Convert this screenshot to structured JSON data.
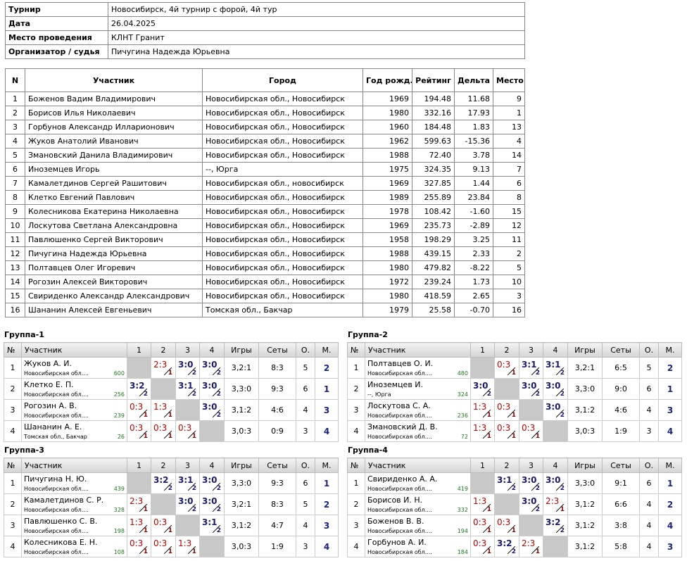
{
  "info": [
    [
      "Турнир",
      "Новосибирск, 4й турнир с форой, 4й тур"
    ],
    [
      "Дата",
      "26.04.2025"
    ],
    [
      "Место проведения",
      "КЛНТ Гранит"
    ],
    [
      "Организатор / судья",
      "Пичугина Надежда Юрьевна"
    ]
  ],
  "participants": {
    "columns": [
      "N",
      "Участник",
      "Город",
      "Год рожд.",
      "Рейтинг",
      "Дельта",
      "Место"
    ],
    "rows": [
      [
        "1",
        "Боженов Вадим Владимирович",
        "Новосибирская обл., Новосибирск",
        "1969",
        "194.48",
        "11.68",
        "9"
      ],
      [
        "2",
        "Борисов Илья Николаевич",
        "Новосибирская обл., Новосибирск",
        "1980",
        "332.16",
        "17.93",
        "1"
      ],
      [
        "3",
        "Горбунов Александр Илларионович",
        "Новосибирская обл., Новосибирск",
        "1960",
        "184.48",
        "1.83",
        "13"
      ],
      [
        "4",
        "Жуков Анатолий Иванович",
        "Новосибирская обл., Новосибирск",
        "1962",
        "599.63",
        "-15.36",
        "4"
      ],
      [
        "5",
        "Змановский Данила Владимирович",
        "Новосибирская обл., Новосибирск",
        "1988",
        "72.40",
        "3.78",
        "14"
      ],
      [
        "6",
        "Иноземцев Игорь",
        "--, Юрга",
        "1975",
        "324.35",
        "9.13",
        "7"
      ],
      [
        "7",
        "Камалетдинов Сергей Рашитович",
        "Новосибирская обл., новосибирск",
        "1969",
        "327.85",
        "1.44",
        "6"
      ],
      [
        "8",
        "Клетко Евгений Павлович",
        "Новосибирская обл., Новосибирск",
        "1989",
        "255.89",
        "23.84",
        "8"
      ],
      [
        "9",
        "Колесникова Екатерина Николаевна",
        "Новосибирская обл., Новосибирск",
        "1978",
        "108.42",
        "-1.60",
        "15"
      ],
      [
        "10",
        "Лоскутова Светлана Александровна",
        "Новосибирская обл., Новосибирск",
        "1969",
        "235.73",
        "-2.89",
        "12"
      ],
      [
        "11",
        "Павлюшенко Сергей Викторович",
        "Новосибирская обл., Новосибирск",
        "1958",
        "198.29",
        "3.25",
        "11"
      ],
      [
        "12",
        "Пичугина Надежда Юрьевна",
        "Новосибирская обл., Новосибирск",
        "1988",
        "439.15",
        "2.33",
        "2"
      ],
      [
        "13",
        "Полтавцев Олег Игоревич",
        "Новосибирская обл., Новосибирск",
        "1980",
        "479.82",
        "-8.22",
        "5"
      ],
      [
        "14",
        "Рогозин Алексей Викторович",
        "Новосибирская обл., Новосибирск",
        "1972",
        "239.24",
        "1.73",
        "10"
      ],
      [
        "15",
        "Свириденко Александр Александрович",
        "Новосибирская обл., Новосибирск",
        "1980",
        "418.59",
        "2.65",
        "3"
      ],
      [
        "16",
        "Шананин Алексей Евгеньевич",
        "Томская обл., Бакчар",
        "1979",
        "25.58",
        "-0.70",
        "16"
      ]
    ]
  },
  "group_columns": [
    "№",
    "Участник",
    "1",
    "2",
    "3",
    "4",
    "Игры",
    "Сеты",
    "О.",
    "М."
  ],
  "groups": [
    {
      "title": "Группа-1",
      "rows": [
        {
          "n": "1",
          "name": "Жуков А. И.",
          "city": "Новосибирская обл....",
          "rating": "600",
          "cells": [
            null,
            {
              "score": "2:3",
              "points": "1"
            },
            {
              "score": "3:0",
              "points": "2"
            },
            {
              "score": "3:0",
              "points": "2"
            }
          ],
          "games": "3,2:1",
          "sets": "8:3",
          "points": "5",
          "place": "2"
        },
        {
          "n": "2",
          "name": "Клетко Е. П.",
          "city": "Новосибирская обл....",
          "rating": "256",
          "cells": [
            {
              "score": "3:2",
              "points": "2"
            },
            null,
            {
              "score": "3:1",
              "points": "2"
            },
            {
              "score": "3:0",
              "points": "2"
            }
          ],
          "games": "3,3:0",
          "sets": "9:3",
          "points": "6",
          "place": "1"
        },
        {
          "n": "3",
          "name": "Рогозин А. В.",
          "city": "Новосибирская обл....",
          "rating": "239",
          "cells": [
            {
              "score": "0:3",
              "points": "1"
            },
            {
              "score": "1:3",
              "points": "1"
            },
            null,
            {
              "score": "3:0",
              "points": "2"
            }
          ],
          "games": "3,1:2",
          "sets": "4:6",
          "points": "4",
          "place": "3"
        },
        {
          "n": "4",
          "name": "Шананин А. Е.",
          "city": "Томская обл., Бакчар",
          "rating": "26",
          "cells": [
            {
              "score": "0:3",
              "points": "1"
            },
            {
              "score": "0:3",
              "points": "1"
            },
            {
              "score": "0:3",
              "points": "1"
            },
            null
          ],
          "games": "3,0:3",
          "sets": "0:9",
          "points": "3",
          "place": "4"
        }
      ]
    },
    {
      "title": "Группа-2",
      "rows": [
        {
          "n": "1",
          "name": "Полтавцев О. И.",
          "city": "Новосибирская обл....",
          "rating": "480",
          "cells": [
            null,
            {
              "score": "0:3",
              "points": "1"
            },
            {
              "score": "3:1",
              "points": "2"
            },
            {
              "score": "3:1",
              "points": "2"
            }
          ],
          "games": "3,2:1",
          "sets": "6:5",
          "points": "5",
          "place": "2"
        },
        {
          "n": "2",
          "name": "Иноземцев И.",
          "city": "--, Юрга",
          "rating": "324",
          "cells": [
            {
              "score": "3:0",
              "points": "2"
            },
            null,
            {
              "score": "3:0",
              "points": "2"
            },
            {
              "score": "3:0",
              "points": "2"
            }
          ],
          "games": "3,3:0",
          "sets": "9:0",
          "points": "6",
          "place": "1"
        },
        {
          "n": "3",
          "name": "Лоскутова С. А.",
          "city": "Новосибирская обл....",
          "rating": "236",
          "cells": [
            {
              "score": "1:3",
              "points": "1"
            },
            {
              "score": "0:3",
              "points": "1"
            },
            null,
            {
              "score": "3:0",
              "points": "2"
            }
          ],
          "games": "3,1:2",
          "sets": "4:6",
          "points": "4",
          "place": "3"
        },
        {
          "n": "4",
          "name": "Змановский Д. В.",
          "city": "Новосибирская обл....",
          "rating": "72",
          "cells": [
            {
              "score": "1:3",
              "points": "1"
            },
            {
              "score": "0:3",
              "points": "1"
            },
            {
              "score": "0:3",
              "points": "1"
            },
            null
          ],
          "games": "3,0:3",
          "sets": "1:9",
          "points": "3",
          "place": "4"
        }
      ]
    },
    {
      "title": "Группа-3",
      "rows": [
        {
          "n": "1",
          "name": "Пичугина Н. Ю.",
          "city": "Новосибирская обл....",
          "rating": "439",
          "cells": [
            null,
            {
              "score": "3:2",
              "points": "2"
            },
            {
              "score": "3:1",
              "points": "2"
            },
            {
              "score": "3:0",
              "points": "2"
            }
          ],
          "games": "3,3:0",
          "sets": "9:3",
          "points": "6",
          "place": "1"
        },
        {
          "n": "2",
          "name": "Камалетдинов С. Р.",
          "city": "Новосибирская обл....",
          "rating": "328",
          "cells": [
            {
              "score": "2:3",
              "points": "1"
            },
            null,
            {
              "score": "3:0",
              "points": "2"
            },
            {
              "score": "3:0",
              "points": "2"
            }
          ],
          "games": "3,2:1",
          "sets": "8:3",
          "points": "5",
          "place": "2"
        },
        {
          "n": "3",
          "name": "Павлюшенко С. В.",
          "city": "Новосибирская обл....",
          "rating": "198",
          "cells": [
            {
              "score": "1:3",
              "points": "1"
            },
            {
              "score": "0:3",
              "points": "1"
            },
            null,
            {
              "score": "3:1",
              "points": "2"
            }
          ],
          "games": "3,1:2",
          "sets": "4:7",
          "points": "4",
          "place": "3"
        },
        {
          "n": "4",
          "name": "Колесникова Е. Н.",
          "city": "Новосибирская обл....",
          "rating": "108",
          "cells": [
            {
              "score": "0:3",
              "points": "1"
            },
            {
              "score": "0:3",
              "points": "1"
            },
            {
              "score": "1:3",
              "points": "1"
            },
            null
          ],
          "games": "3,0:3",
          "sets": "1:9",
          "points": "3",
          "place": "4"
        }
      ]
    },
    {
      "title": "Группа-4",
      "rows": [
        {
          "n": "1",
          "name": "Свириденко А. А.",
          "city": "Новосибирская обл....",
          "rating": "419",
          "cells": [
            null,
            {
              "score": "3:1",
              "points": "2"
            },
            {
              "score": "3:0",
              "points": "2"
            },
            {
              "score": "3:0",
              "points": "2"
            }
          ],
          "games": "3,3:0",
          "sets": "9:1",
          "points": "6",
          "place": "1"
        },
        {
          "n": "2",
          "name": "Борисов И. Н.",
          "city": "Новосибирская обл....",
          "rating": "332",
          "cells": [
            {
              "score": "1:3",
              "points": "1"
            },
            null,
            {
              "score": "3:0",
              "points": "2"
            },
            {
              "score": "2:3",
              "points": "1"
            }
          ],
          "games": "3,1:2",
          "sets": "6:6",
          "points": "4",
          "place": "2"
        },
        {
          "n": "3",
          "name": "Боженов В. В.",
          "city": "Новосибирская обл....",
          "rating": "194",
          "cells": [
            {
              "score": "0:3",
              "points": "1"
            },
            {
              "score": "0:3",
              "points": "1"
            },
            null,
            {
              "score": "3:2",
              "points": "2"
            }
          ],
          "games": "3,1:2",
          "sets": "3:8",
          "points": "4",
          "place": "4"
        },
        {
          "n": "4",
          "name": "Горбунов А. И.",
          "city": "Новосибирская обл....",
          "rating": "184",
          "cells": [
            {
              "score": "0:3",
              "points": "1"
            },
            {
              "score": "3:2",
              "points": "2"
            },
            {
              "score": "2:3",
              "points": "1"
            },
            null
          ],
          "games": "3,1:2",
          "sets": "5:8",
          "points": "4",
          "place": "3"
        }
      ]
    }
  ]
}
